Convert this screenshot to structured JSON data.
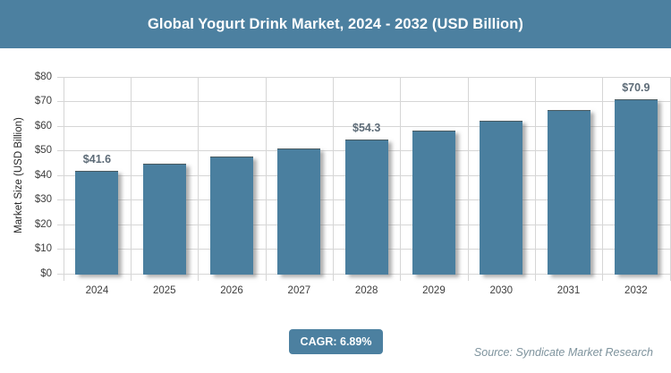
{
  "title": "Global Yogurt Drink Market, 2024 - 2032 (USD Billion)",
  "footer": {
    "cagr_label": "CAGR: 6.89%",
    "source": "Source: Syndicate Market Research"
  },
  "colors": {
    "banner_background": "#4C80A0",
    "bar_fill": "#4A7F9F",
    "data_label_text": "#5d6b77",
    "gridline": "#d6d6d6",
    "axis_text": "#3d3d3d",
    "source_text": "#7E939D",
    "title_text": "#ffffff"
  },
  "chart_data": {
    "type": "bar",
    "title": "Global Yogurt Drink Market, 2024 - 2032 (USD Billion)",
    "categories": [
      "2024",
      "2025",
      "2026",
      "2027",
      "2028",
      "2029",
      "2030",
      "2031",
      "2032"
    ],
    "values": [
      41.6,
      44.5,
      47.5,
      50.8,
      54.3,
      58.0,
      62.0,
      66.3,
      70.9
    ],
    "data_labels": [
      "$41.6",
      "",
      "",
      "",
      "$54.3",
      "",
      "",
      "",
      "$70.9"
    ],
    "xlabel": "",
    "ylabel": "Market Size (USD Billion)",
    "ylim": [
      0,
      80
    ],
    "ytick_step": 10,
    "ytick_labels": [
      "$0",
      "$10",
      "$20",
      "$30",
      "$40",
      "$50",
      "$60",
      "$70",
      "$80"
    ],
    "grid": "both",
    "legend": "none",
    "cagr": "6.89%"
  }
}
